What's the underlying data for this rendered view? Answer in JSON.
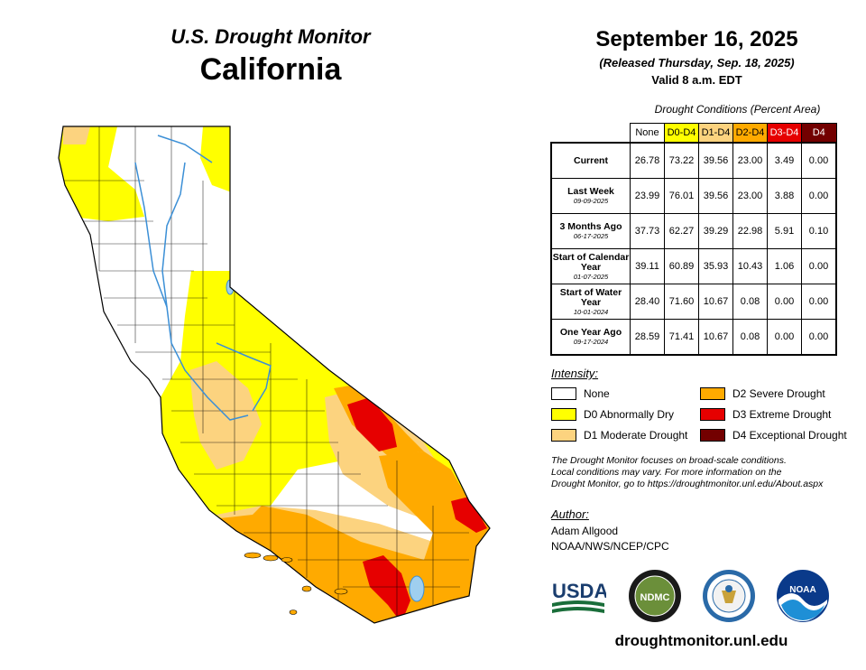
{
  "header": {
    "product": "U.S. Drought Monitor",
    "state": "California",
    "date": "September 16, 2025",
    "released": "(Released Thursday, Sep. 18, 2025)",
    "valid": "Valid 8 a.m. EDT"
  },
  "table": {
    "caption": "Drought Conditions (Percent Area)",
    "columns": [
      {
        "label": "None",
        "bg": "#ffffff",
        "fg": "#000000"
      },
      {
        "label": "D0-D4",
        "bg": "#ffff00",
        "fg": "#000000"
      },
      {
        "label": "D1-D4",
        "bg": "#fcd37f",
        "fg": "#000000"
      },
      {
        "label": "D2-D4",
        "bg": "#ffaa00",
        "fg": "#000000"
      },
      {
        "label": "D3-D4",
        "bg": "#e60000",
        "fg": "#ffffff"
      },
      {
        "label": "D4",
        "bg": "#730000",
        "fg": "#ffffff"
      }
    ],
    "rows": [
      {
        "label": "Current",
        "sub": "",
        "values": [
          "26.78",
          "73.22",
          "39.56",
          "23.00",
          "3.49",
          "0.00"
        ]
      },
      {
        "label": "Last Week",
        "sub": "09-09-2025",
        "values": [
          "23.99",
          "76.01",
          "39.56",
          "23.00",
          "3.88",
          "0.00"
        ]
      },
      {
        "label": "3 Months Ago",
        "sub": "06-17-2025",
        "values": [
          "37.73",
          "62.27",
          "39.29",
          "22.98",
          "5.91",
          "0.10"
        ]
      },
      {
        "label": "Start of Calendar Year",
        "sub": "01-07-2025",
        "values": [
          "39.11",
          "60.89",
          "35.93",
          "10.43",
          "1.06",
          "0.00"
        ]
      },
      {
        "label": "Start of Water Year",
        "sub": "10-01-2024",
        "values": [
          "28.40",
          "71.60",
          "10.67",
          "0.08",
          "0.00",
          "0.00"
        ]
      },
      {
        "label": "One Year Ago",
        "sub": "09-17-2024",
        "values": [
          "28.59",
          "71.41",
          "10.67",
          "0.08",
          "0.00",
          "0.00"
        ]
      }
    ]
  },
  "legend": {
    "title": "Intensity:",
    "items": [
      {
        "label": "None",
        "color": "#ffffff"
      },
      {
        "label": "D0 Abnormally Dry",
        "color": "#ffff00"
      },
      {
        "label": "D1 Moderate Drought",
        "color": "#fcd37f"
      },
      {
        "label": "D2 Severe Drought",
        "color": "#ffaa00"
      },
      {
        "label": "D3 Extreme Drought",
        "color": "#e60000"
      },
      {
        "label": "D4 Exceptional Drought",
        "color": "#730000"
      }
    ]
  },
  "note": {
    "line1": "The Drought Monitor focuses on broad-scale conditions.",
    "line2": "Local conditions may vary. For more information on the",
    "line3": "Drought Monitor, go to https://droughtmonitor.unl.edu/About.aspx"
  },
  "author": {
    "title": "Author:",
    "name": "Adam Allgood",
    "org": "NOAA/NWS/NCEP/CPC"
  },
  "logos": {
    "usda": "USDA",
    "ndmc": "NDMC",
    "noaa": "NOAA"
  },
  "website": "droughtmonitor.unl.edu",
  "colors": {
    "none": "#ffffff",
    "d0": "#ffff00",
    "d1": "#fcd37f",
    "d2": "#ffaa00",
    "d3": "#e60000",
    "d4": "#730000",
    "water": "#9fcfef",
    "river": "#3b8fd6"
  }
}
